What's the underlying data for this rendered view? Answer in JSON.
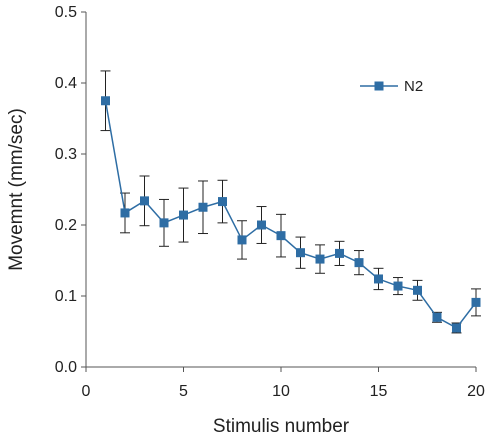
{
  "chart_data": {
    "type": "line",
    "xlabel": "Stimulis number",
    "ylabel": "Movemnt (mm/sec)",
    "xlim": [
      0,
      20
    ],
    "ylim": [
      0,
      0.5
    ],
    "xticks": [
      0,
      5,
      10,
      15,
      20
    ],
    "xtick_labels": [
      "0",
      "5",
      "10",
      "15",
      "20"
    ],
    "yticks": [
      0,
      0.1,
      0.2,
      0.3,
      0.4,
      0.5
    ],
    "ytick_labels": [
      "0.0",
      "0.1",
      "0.2",
      "0.3",
      "0.4",
      "0.5"
    ],
    "grid": false,
    "legend_position": "top-right",
    "series": [
      {
        "name": "N2",
        "color": "#2e6da4",
        "marker": "square",
        "x": [
          1,
          2,
          3,
          4,
          5,
          6,
          7,
          8,
          9,
          10,
          11,
          12,
          13,
          14,
          15,
          16,
          17,
          18,
          19,
          20
        ],
        "y": [
          0.375,
          0.217,
          0.234,
          0.203,
          0.214,
          0.225,
          0.233,
          0.179,
          0.2,
          0.185,
          0.161,
          0.152,
          0.16,
          0.147,
          0.124,
          0.114,
          0.108,
          0.07,
          0.055,
          0.091
        ],
        "error": [
          0.042,
          0.028,
          0.035,
          0.033,
          0.038,
          0.037,
          0.03,
          0.027,
          0.026,
          0.03,
          0.022,
          0.02,
          0.017,
          0.017,
          0.015,
          0.012,
          0.014,
          0.007,
          0.007,
          0.019
        ]
      }
    ]
  }
}
